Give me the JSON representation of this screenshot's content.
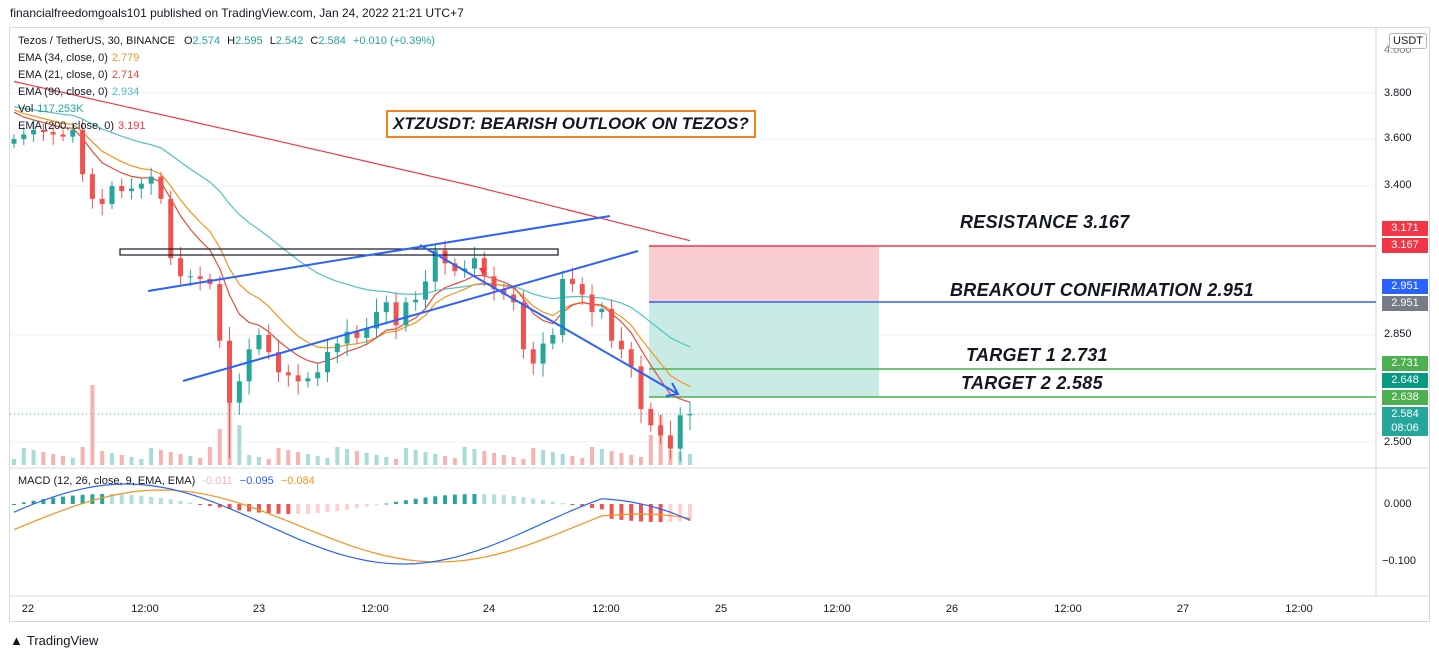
{
  "publisher_line": "financialfreedomgoals101 published on TradingView.com, Jan 24, 2022 21:21 UTC+7",
  "footer_brand": "TradingView",
  "currency": "USDT",
  "symbol_legend": {
    "name": "Tezos / TetherUS, 30, BINANCE",
    "o_label": "O",
    "o": "2.574",
    "h_label": "H",
    "h": "2.595",
    "l_label": "L",
    "l": "2.542",
    "c_label": "C",
    "c": "2.584",
    "change": "+0.010 (+0.39%)"
  },
  "indicators": [
    {
      "label": "EMA (34, close, 0)",
      "value": "2.779",
      "color": "#f7931a"
    },
    {
      "label": "EMA (21, close, 0)",
      "value": "2.714",
      "color": "#e84b3c"
    },
    {
      "label": "EMA (90, close, 0)",
      "value": "2.934",
      "color": "#4fc3c7"
    },
    {
      "label": "Vol",
      "value": "117.253K",
      "color": "#26a69a"
    },
    {
      "label": "EMA (200, close, 0)",
      "value": "3.191",
      "color": "#f23645"
    }
  ],
  "macd_legend": {
    "label": "MACD (12, 26, close, 9, EMA, EMA)",
    "hist": "-0.011",
    "macd": "−0.095",
    "signal": "−0.084"
  },
  "title_annotation": "XTZUSDT: BEARISH OUTLOOK ON TEZOS?",
  "annotations": {
    "resistance": "RESISTANCE 3.167",
    "breakout": "BREAKOUT CONFIRMATION 2.951",
    "target1": "TARGET 1  2.731",
    "target2": "TARGET 2  2.585"
  },
  "badges": [
    {
      "text": "3.171",
      "bg": "#f23645",
      "price": 3.171
    },
    {
      "text": "3.167",
      "bg": "#f23645",
      "price": 3.167
    },
    {
      "text": "2.951",
      "bg": "#2962ff",
      "price": 2.951
    },
    {
      "text": "2.951",
      "bg": "#787b86",
      "price": 2.951
    },
    {
      "text": "2.731",
      "bg": "#4caf50",
      "price": 2.731
    },
    {
      "text": "2.648",
      "bg": "#089981",
      "price": 2.648
    },
    {
      "text": "2.638",
      "bg": "#4caf50",
      "price": 2.638
    },
    {
      "text": "2.584",
      "bg": "#26a69a",
      "price": 2.584
    },
    {
      "text": "08:06",
      "bg": "#26a69a",
      "price": 2.584
    }
  ],
  "colors": {
    "bull": "#26a69a",
    "bear": "#ef5350",
    "trend": "#2962ff",
    "resistance": "#f23645",
    "target": "#4caf50",
    "stop_zone": "#f9cdd1",
    "target_zone": "#c9ebe5",
    "macd_line": "#2962ff",
    "signal_line": "#f7931a"
  },
  "chart_data": {
    "type": "candlestick",
    "interval": "30",
    "y_axis_ticks": [
      "4.000",
      "3.800",
      "3.600",
      "3.400",
      "2.850",
      "2.500"
    ],
    "macd_axis_ticks": [
      "0.000",
      "−0.100"
    ],
    "x_axis_ticks": [
      "22",
      "12:00",
      "23",
      "12:00",
      "24",
      "12:00",
      "25",
      "12:00",
      "26",
      "12:00",
      "27",
      "12:00"
    ],
    "levels": {
      "resistance": 3.167,
      "breakout_confirmation": 2.951,
      "target1": 2.731,
      "target2": 2.585,
      "last_price": 2.584
    },
    "close_series": [
      3.6,
      3.62,
      3.64,
      3.63,
      3.62,
      3.61,
      3.64,
      3.45,
      3.35,
      3.33,
      3.4,
      3.38,
      3.39,
      3.41,
      3.44,
      3.35,
      3.12,
      3.05,
      3.05,
      3.04,
      3.02,
      2.83,
      2.62,
      2.69,
      2.8,
      2.85,
      2.79,
      2.72,
      2.71,
      2.69,
      2.7,
      2.72,
      2.79,
      2.82,
      2.86,
      2.84,
      2.87,
      2.92,
      2.95,
      2.88,
      2.95,
      2.96,
      3.03,
      3.15,
      3.1,
      3.07,
      3.08,
      3.12,
      3.05,
      3.0,
      2.98,
      2.95,
      2.8,
      2.75,
      2.82,
      2.85,
      3.04,
      3.02,
      2.98,
      2.92,
      2.93,
      2.83,
      2.8,
      2.74,
      2.6,
      2.55,
      2.52,
      2.48,
      2.58,
      2.584
    ]
  }
}
